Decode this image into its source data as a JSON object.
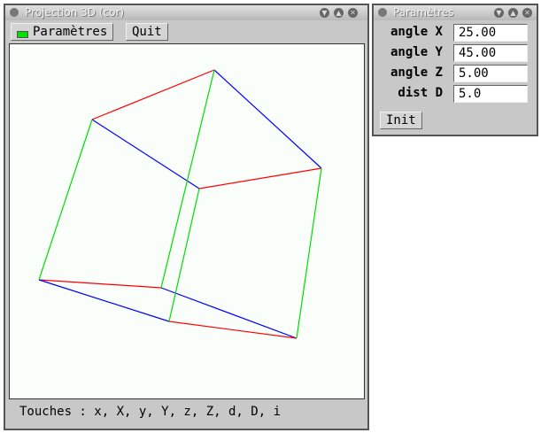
{
  "main_window": {
    "title": "Projection 3D (cor)",
    "params_button": "Paramètres",
    "params_indicator_color": "#00e000",
    "quit_button": "Quit",
    "status": "Touches : x, X, y, Y, z, Z, d, D, i"
  },
  "params_window": {
    "title": "Paramètres",
    "fields": [
      {
        "label": "angle X",
        "value": "25.00"
      },
      {
        "label": "angle Y",
        "value": "45.00"
      },
      {
        "label": "angle Z",
        "value": "5.00"
      },
      {
        "label": "dist D",
        "value": "5.0"
      }
    ],
    "init_button": "Init"
  },
  "edge_colors": {
    "x": "#ff0000",
    "y": "#00dd00",
    "z": "#0000ff"
  }
}
